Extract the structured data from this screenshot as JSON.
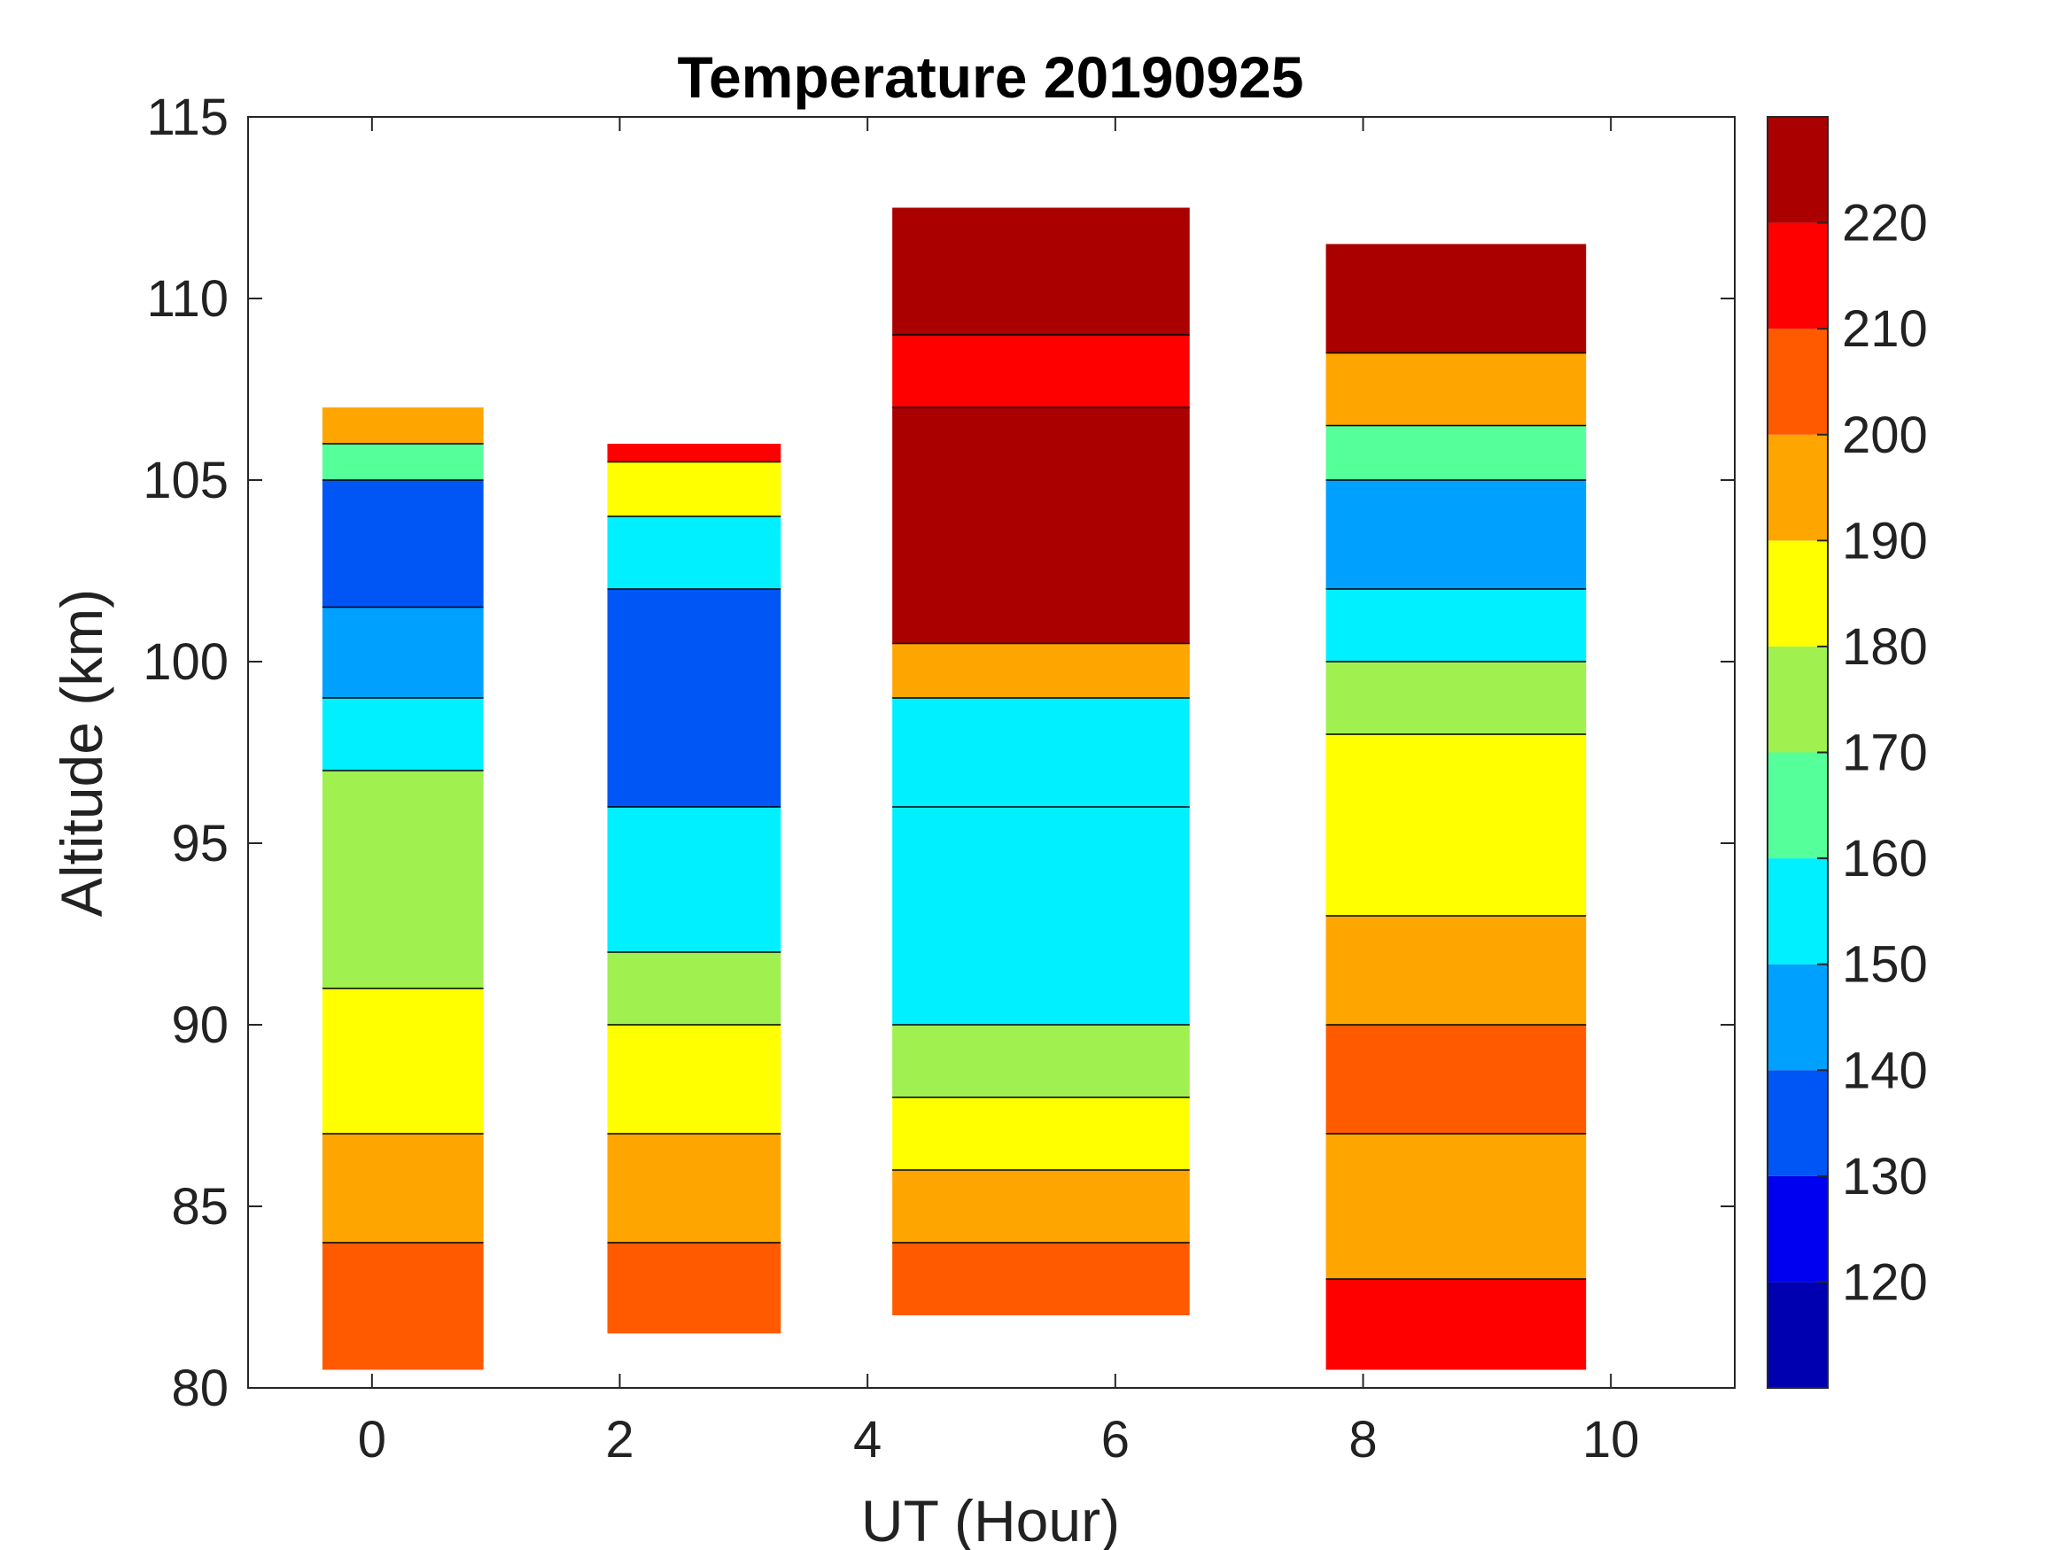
{
  "chart_data": {
    "type": "heatmap",
    "title": "Temperature 20190925",
    "xlabel": "UT (Hour)",
    "ylabel": "Altitude (km)",
    "xlim": [
      -1,
      11
    ],
    "ylim": [
      80,
      115
    ],
    "xticks": [
      0,
      2,
      4,
      6,
      8,
      10
    ],
    "yticks": [
      80,
      85,
      90,
      95,
      100,
      105,
      110,
      115
    ],
    "grid": false,
    "colorbar": {
      "range": [
        110,
        230
      ],
      "ticks": [
        120,
        130,
        140,
        150,
        160,
        170,
        180,
        190,
        200,
        210,
        220
      ],
      "levels": [
        {
          "min": 110,
          "max": 120,
          "color": "#0000b0"
        },
        {
          "min": 120,
          "max": 130,
          "color": "#0000f0"
        },
        {
          "min": 130,
          "max": 140,
          "color": "#0055f5"
        },
        {
          "min": 140,
          "max": 150,
          "color": "#00a0ff"
        },
        {
          "min": 150,
          "max": 160,
          "color": "#00f0ff"
        },
        {
          "min": 160,
          "max": 170,
          "color": "#55ff99"
        },
        {
          "min": 170,
          "max": 180,
          "color": "#a0f050"
        },
        {
          "min": 180,
          "max": 190,
          "color": "#ffff00"
        },
        {
          "min": 190,
          "max": 200,
          "color": "#ffa500"
        },
        {
          "min": 200,
          "max": 210,
          "color": "#ff5a00"
        },
        {
          "min": 210,
          "max": 220,
          "color": "#ff0000"
        },
        {
          "min": 220,
          "max": 230,
          "color": "#aa0000"
        }
      ]
    },
    "observation_blocks": [
      {
        "ut_range": [
          -0.4,
          0.9
        ],
        "altitude_range": [
          80.5,
          107
        ],
        "profile": [
          {
            "alt_range": [
              80.5,
              84
            ],
            "temperature": 205
          },
          {
            "alt_range": [
              84,
              87
            ],
            "temperature": 195
          },
          {
            "alt_range": [
              87,
              91
            ],
            "temperature": 185
          },
          {
            "alt_range": [
              91,
              97
            ],
            "temperature": 178
          },
          {
            "alt_range": [
              97,
              99
            ],
            "temperature": 158
          },
          {
            "alt_range": [
              99,
              101.5
            ],
            "temperature": 145
          },
          {
            "alt_range": [
              101.5,
              105
            ],
            "temperature": 135
          },
          {
            "alt_range": [
              105,
              106
            ],
            "temperature": 165
          },
          {
            "alt_range": [
              106,
              107
            ],
            "temperature": 195
          }
        ]
      },
      {
        "ut_range": [
          1.9,
          3.3
        ],
        "altitude_range": [
          81.5,
          106
        ],
        "profile": [
          {
            "alt_range": [
              81.5,
              84
            ],
            "temperature": 205
          },
          {
            "alt_range": [
              84,
              87
            ],
            "temperature": 195
          },
          {
            "alt_range": [
              87,
              90
            ],
            "temperature": 185
          },
          {
            "alt_range": [
              90,
              92
            ],
            "temperature": 175
          },
          {
            "alt_range": [
              92,
              96
            ],
            "temperature": 155
          },
          {
            "alt_range": [
              96,
              102
            ],
            "temperature": 138
          },
          {
            "alt_range": [
              102,
              104
            ],
            "temperature": 150
          },
          {
            "alt_range": [
              104,
              105.5
            ],
            "temperature": 185
          },
          {
            "alt_range": [
              105.5,
              106
            ],
            "temperature": 215
          }
        ]
      },
      {
        "ut_range": [
          4.2,
          6.6
        ],
        "altitude_range": [
          82,
          112.5
        ],
        "profile": [
          {
            "alt_range": [
              82,
              84
            ],
            "temperature": 205
          },
          {
            "alt_range": [
              84,
              86
            ],
            "temperature": 195
          },
          {
            "alt_range": [
              86,
              88
            ],
            "temperature": 185
          },
          {
            "alt_range": [
              88,
              90
            ],
            "temperature": 175
          },
          {
            "alt_range": [
              90,
              96
            ],
            "temperature": 155
          },
          {
            "alt_range": [
              96,
              99
            ],
            "temperature": 150
          },
          {
            "alt_range": [
              99,
              100.5
            ],
            "temperature": 195
          },
          {
            "alt_range": [
              100.5,
              107
            ],
            "temperature": 225
          },
          {
            "alt_range": [
              107,
              109
            ],
            "temperature": 215
          },
          {
            "alt_range": [
              109,
              112.5
            ],
            "temperature": 225
          }
        ]
      },
      {
        "ut_range": [
          7.7,
          9.8
        ],
        "altitude_range": [
          80.5,
          111.5
        ],
        "profile": [
          {
            "alt_range": [
              80.5,
              83
            ],
            "temperature": 210
          },
          {
            "alt_range": [
              83,
              87
            ],
            "temperature": 195
          },
          {
            "alt_range": [
              87,
              90
            ],
            "temperature": 200
          },
          {
            "alt_range": [
              90,
              93
            ],
            "temperature": 195
          },
          {
            "alt_range": [
              93,
              98
            ],
            "temperature": 185
          },
          {
            "alt_range": [
              98,
              100
            ],
            "temperature": 175
          },
          {
            "alt_range": [
              100,
              102
            ],
            "temperature": 150
          },
          {
            "alt_range": [
              102,
              105
            ],
            "temperature": 140
          },
          {
            "alt_range": [
              105,
              106.5
            ],
            "temperature": 160
          },
          {
            "alt_range": [
              106.5,
              108.5
            ],
            "temperature": 195
          },
          {
            "alt_range": [
              108.5,
              111.5
            ],
            "temperature": 225
          }
        ]
      }
    ]
  }
}
